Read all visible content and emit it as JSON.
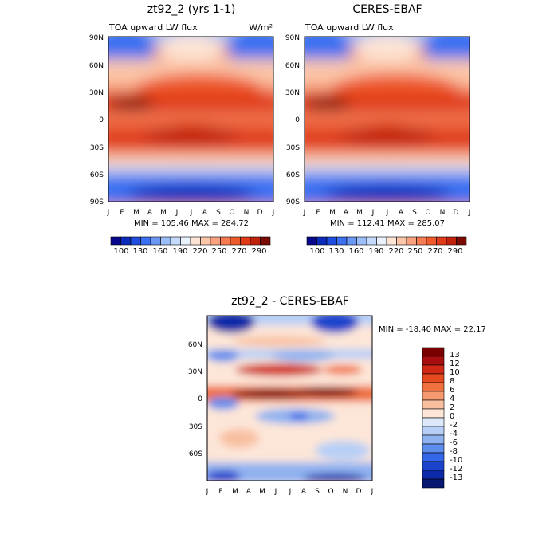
{
  "chart_data": [
    {
      "type": "heatmap",
      "title": "zt92_2 (yrs 1-1)",
      "subtitle_left": "TOA upward LW flux",
      "units": "W/m²",
      "x_ticks": [
        "J",
        "F",
        "M",
        "A",
        "M",
        "J",
        "J",
        "A",
        "S",
        "O",
        "N",
        "D",
        "J"
      ],
      "y_ticks": [
        "90N",
        "60N",
        "30N",
        "0",
        "30S",
        "60S",
        "90S"
      ],
      "stats": "MIN = 105.46 MAX = 284.72",
      "colorbar_labels": [
        "100",
        "130",
        "160",
        "190",
        "220",
        "250",
        "270",
        "290"
      ]
    },
    {
      "type": "heatmap",
      "title": "CERES-EBAF",
      "subtitle_left": "TOA upward LW flux",
      "x_ticks": [
        "J",
        "F",
        "M",
        "A",
        "M",
        "J",
        "J",
        "A",
        "S",
        "O",
        "N",
        "D",
        "J"
      ],
      "y_ticks": [
        "90N",
        "60N",
        "30N",
        "0",
        "30S",
        "60S",
        "90S"
      ],
      "stats": "MIN = 112.41 MAX = 285.07",
      "colorbar_labels": [
        "100",
        "130",
        "160",
        "190",
        "220",
        "250",
        "270",
        "290"
      ]
    },
    {
      "type": "heatmap",
      "title": "zt92_2 - CERES-EBAF",
      "x_ticks": [
        "J",
        "F",
        "M",
        "A",
        "M",
        "J",
        "J",
        "A",
        "S",
        "O",
        "N",
        "D",
        "J"
      ],
      "y_ticks": [
        "60N",
        "30N",
        "0",
        "30S",
        "60S"
      ],
      "stats": "MIN = -18.40 MAX =  22.17",
      "colorbar_labels": [
        "13",
        "12",
        "10",
        "8",
        "6",
        "4",
        "2",
        "0",
        "-2",
        "-4",
        "-6",
        "-8",
        "-10",
        "-12",
        "-13"
      ]
    }
  ],
  "colors": {
    "flux": [
      "#08088c",
      "#0c2bb8",
      "#1d4ee0",
      "#3b70f0",
      "#6b97f5",
      "#9bbdf8",
      "#c5dafb",
      "#e9f1fd",
      "#fde4d4",
      "#fbc6a9",
      "#f9a27d",
      "#f67b52",
      "#ef5a2c",
      "#e03a17",
      "#c0220b",
      "#7a0a04"
    ],
    "diff": [
      "#7a0000",
      "#a80e0e",
      "#d02814",
      "#e84a20",
      "#f07040",
      "#f59a70",
      "#f8c0a0",
      "#fde6d8",
      "#dce9fb",
      "#b7cff6",
      "#8fb2f0",
      "#5f8ded",
      "#3366e8",
      "#1a44cc",
      "#0d2aa8",
      "#061870"
    ]
  }
}
